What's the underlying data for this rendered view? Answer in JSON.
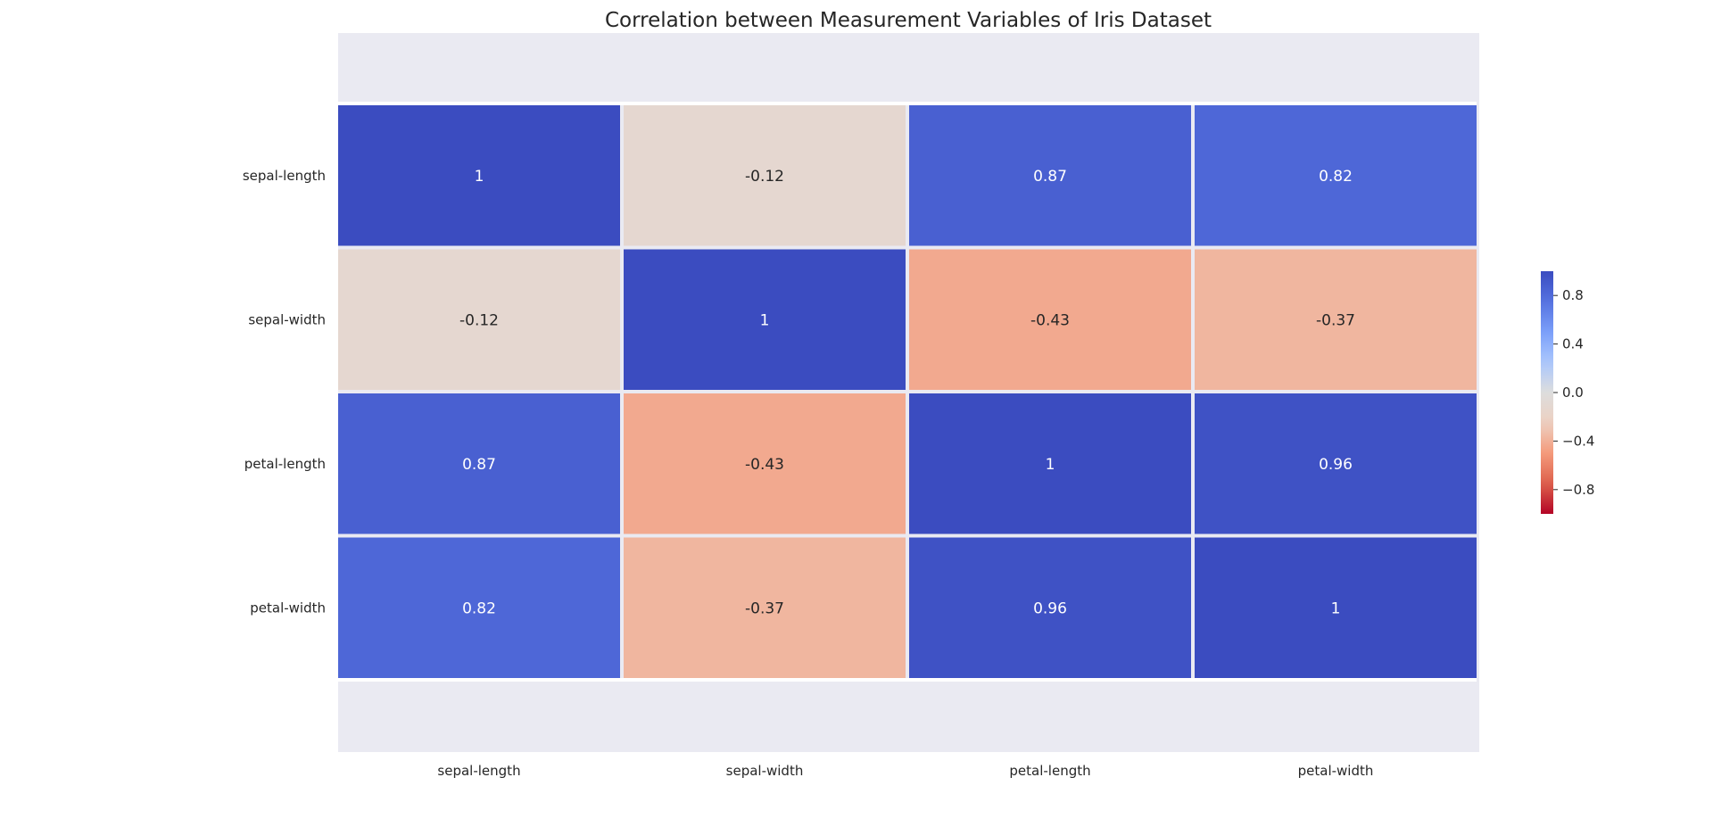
{
  "chart_data": {
    "type": "heatmap",
    "title": "Correlation between Measurement Variables of Iris Dataset",
    "xlabel": "",
    "ylabel": "",
    "x_categories": [
      "sepal-length",
      "sepal-width",
      "petal-length",
      "petal-width"
    ],
    "y_categories": [
      "sepal-length",
      "sepal-width",
      "petal-length",
      "petal-width"
    ],
    "values": [
      [
        1,
        -0.12,
        0.87,
        0.82
      ],
      [
        -0.12,
        1,
        -0.43,
        -0.37
      ],
      [
        0.87,
        -0.43,
        1,
        0.96
      ],
      [
        0.82,
        -0.37,
        0.96,
        1
      ]
    ],
    "cell_labels": [
      [
        "1",
        "-0.12",
        "0.87",
        "0.82"
      ],
      [
        "-0.12",
        "1",
        "-0.43",
        "-0.37"
      ],
      [
        "0.87",
        "-0.43",
        "1",
        "0.96"
      ],
      [
        "0.82",
        "-0.37",
        "0.96",
        "1"
      ]
    ],
    "colormap": "coolwarm_r",
    "vmin": -1,
    "vmax": 1,
    "colorbar": {
      "ticks": [
        0.8,
        0.4,
        0.0,
        -0.4,
        -0.8
      ],
      "tick_labels": [
        "0.8",
        "0.4",
        "0.0",
        "−0.4",
        "−0.8"
      ],
      "placement": "right"
    },
    "background_color": "#eaeaf2",
    "grid": false
  }
}
